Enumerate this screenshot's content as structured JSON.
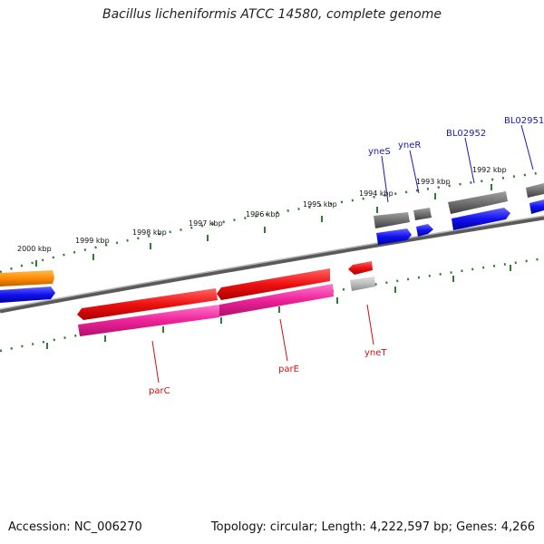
{
  "title": "Bacillus licheniformis ATCC 14580, complete genome",
  "footer": {
    "accession": "Accession: NC_006270",
    "topology": "Topology: circular; Length: 4,222,597 bp; Genes: 4,266"
  },
  "colors": {
    "backbone": "#808080",
    "ticks": "#2e7d32",
    "label_forward": "#1a1aaa",
    "label_reverse": "#cc1111",
    "gene_red": "#ee1111",
    "gene_pink": "#ee2299",
    "gene_blue": "#1111ee",
    "gene_gray": "#707070",
    "gene_lightgray": "#bdbdbd",
    "gene_orange": "#ff8c00"
  },
  "ruler": {
    "unit": "kbp",
    "labels": [
      "2000 kbp",
      "1999 kbp",
      "1998 kbp",
      "1997 kbp",
      "1996 kbp",
      "1995 kbp",
      "1994 kbp",
      "1993 kbp",
      "1992 kbp"
    ]
  },
  "gene_labels": [
    {
      "name": "yneS",
      "strand": "forward"
    },
    {
      "name": "yneR",
      "strand": "forward"
    },
    {
      "name": "BL02952",
      "strand": "forward"
    },
    {
      "name": "BL02951",
      "strand": "forward"
    },
    {
      "name": "parC",
      "strand": "reverse"
    },
    {
      "name": "parE",
      "strand": "reverse"
    },
    {
      "name": "yneT",
      "strand": "reverse"
    }
  ]
}
